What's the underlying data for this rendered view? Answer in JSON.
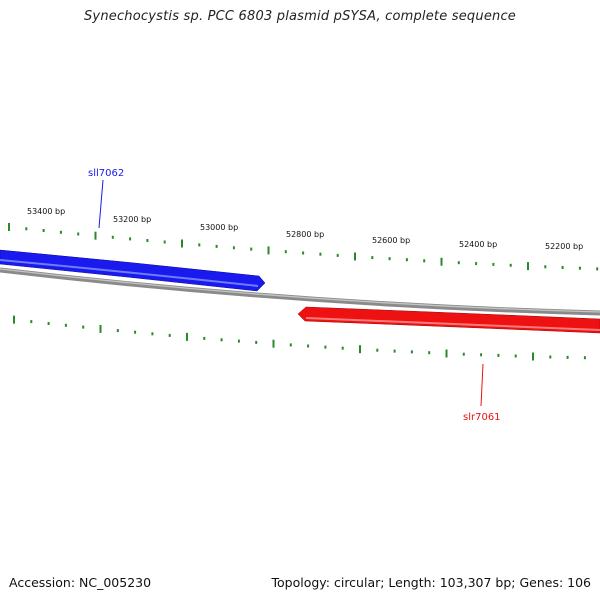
{
  "title": "Synechocystis sp. PCC 6803 plasmid pSYSA, complete sequence",
  "footer": {
    "accession": "Accession: NC_005230",
    "summary": "Topology: circular; Length: 103,307 bp; Genes: 106"
  },
  "colors": {
    "forward_gene": "#1a1aee",
    "reverse_gene": "#ee1111",
    "backbone": "#8a8a8a",
    "ticks": "#2a8a2a",
    "label_text": "#111111"
  },
  "ruler": {
    "labels": [
      "53400 bp",
      "53200 bp",
      "53000 bp",
      "52800 bp",
      "52600 bp",
      "52400 bp",
      "52200 bp"
    ]
  },
  "genes": [
    {
      "name": "sll7062",
      "strand": "forward",
      "color": "#1a1aee"
    },
    {
      "name": "slr7061",
      "strand": "reverse",
      "color": "#ee1111"
    }
  ]
}
